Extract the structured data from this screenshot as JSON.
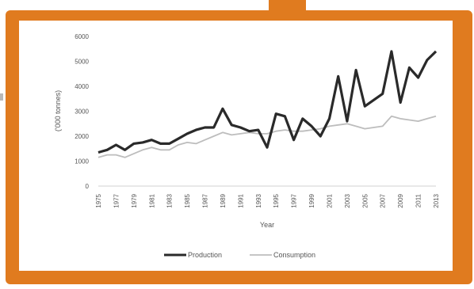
{
  "chart_data": {
    "type": "line",
    "xlabel": "Year",
    "ylabel": "('000 tonnes)",
    "ylim": [
      0,
      6000
    ],
    "yticks": [
      0,
      1000,
      2000,
      3000,
      4000,
      5000,
      6000
    ],
    "x_tick_labels": [
      "1975",
      "1977",
      "1979",
      "1981",
      "1983",
      "1985",
      "1987",
      "1989",
      "1991",
      "1993",
      "1995",
      "1997",
      "1999",
      "2001",
      "2003",
      "2005",
      "2007",
      "2009",
      "2011",
      "2013"
    ],
    "x": [
      1975,
      1976,
      1977,
      1978,
      1979,
      1980,
      1981,
      1982,
      1983,
      1984,
      1985,
      1986,
      1987,
      1988,
      1989,
      1990,
      1991,
      1992,
      1993,
      1994,
      1995,
      1996,
      1997,
      1998,
      1999,
      2000,
      2001,
      2002,
      2003,
      2004,
      2005,
      2006,
      2007,
      2008,
      2009,
      2010,
      2011,
      2012,
      2013
    ],
    "series": [
      {
        "name": "Production",
        "color": "#2a2a2a",
        "values": [
          1350,
          1450,
          1650,
          1450,
          1700,
          1750,
          1850,
          1700,
          1700,
          1900,
          2100,
          2250,
          2350,
          2350,
          3100,
          2450,
          2350,
          2200,
          2250,
          1550,
          2900,
          2800,
          1850,
          2700,
          2400,
          2000,
          2700,
          4400,
          2600,
          4650,
          3200,
          3450,
          3700,
          5400,
          3350,
          4750,
          4350,
          5050,
          5400
        ]
      },
      {
        "name": "Consumption",
        "color": "#bdbdbd",
        "values": [
          1150,
          1250,
          1250,
          1150,
          1300,
          1450,
          1550,
          1450,
          1450,
          1650,
          1750,
          1700,
          1850,
          2000,
          2150,
          2050,
          2100,
          2150,
          2100,
          2100,
          2200,
          2250,
          2200,
          2200,
          2250,
          2300,
          2400,
          2450,
          2500,
          2400,
          2300,
          2350,
          2400,
          2800,
          2700,
          2650,
          2600,
          2700,
          2800
        ]
      }
    ],
    "legend": "bottom",
    "grid": false
  }
}
